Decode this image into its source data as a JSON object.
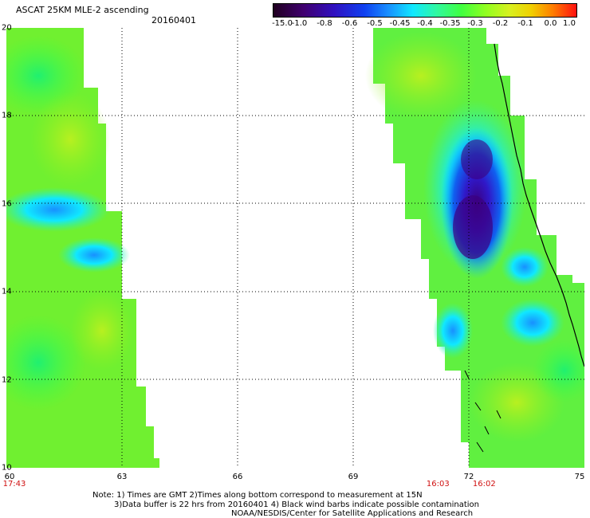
{
  "header": {
    "title": "ASCAT 25KM MLE-2 ascending",
    "date": "20160401"
  },
  "colorbar": {
    "tick_labels": [
      "-15.0",
      "-1.0",
      "-0.8",
      "-0.6",
      "-0.5",
      "-0.45",
      "-0.4",
      "-0.35",
      "-0.3",
      "-0.2",
      "-0.1",
      "0.0",
      "1.0"
    ],
    "colors": [
      "#2a0030",
      "#3a0070",
      "#3010c0",
      "#1040f0",
      "#1890ff",
      "#10e8ff",
      "#30f8a0",
      "#40ff40",
      "#90ff20",
      "#c8f020",
      "#f0d000",
      "#ff8000",
      "#ff2000"
    ]
  },
  "map": {
    "lat_labels": [
      "20",
      "18",
      "16",
      "14",
      "12",
      "10"
    ],
    "lon_labels": [
      "60",
      "63",
      "66",
      "69",
      "72",
      "75"
    ],
    "pass_times": [
      {
        "text": "17:43",
        "lon": 60
      },
      {
        "text": "16:03",
        "lon": 71.2
      },
      {
        "text": "16:02",
        "lon": 72.4
      }
    ],
    "colors": {
      "swath_base": "#90f020",
      "land_line": "#000000"
    }
  },
  "footer": {
    "line1": "Note: 1) Times are GMT 2)Times along bottom correspond to measurement at 15N",
    "line2": "3)Data buffer is 22 hrs from 20160401 4) Black wind barbs indicate possible contamination",
    "line3": "NOAA/NESDIS/Center for Satellite Applications and Research"
  }
}
